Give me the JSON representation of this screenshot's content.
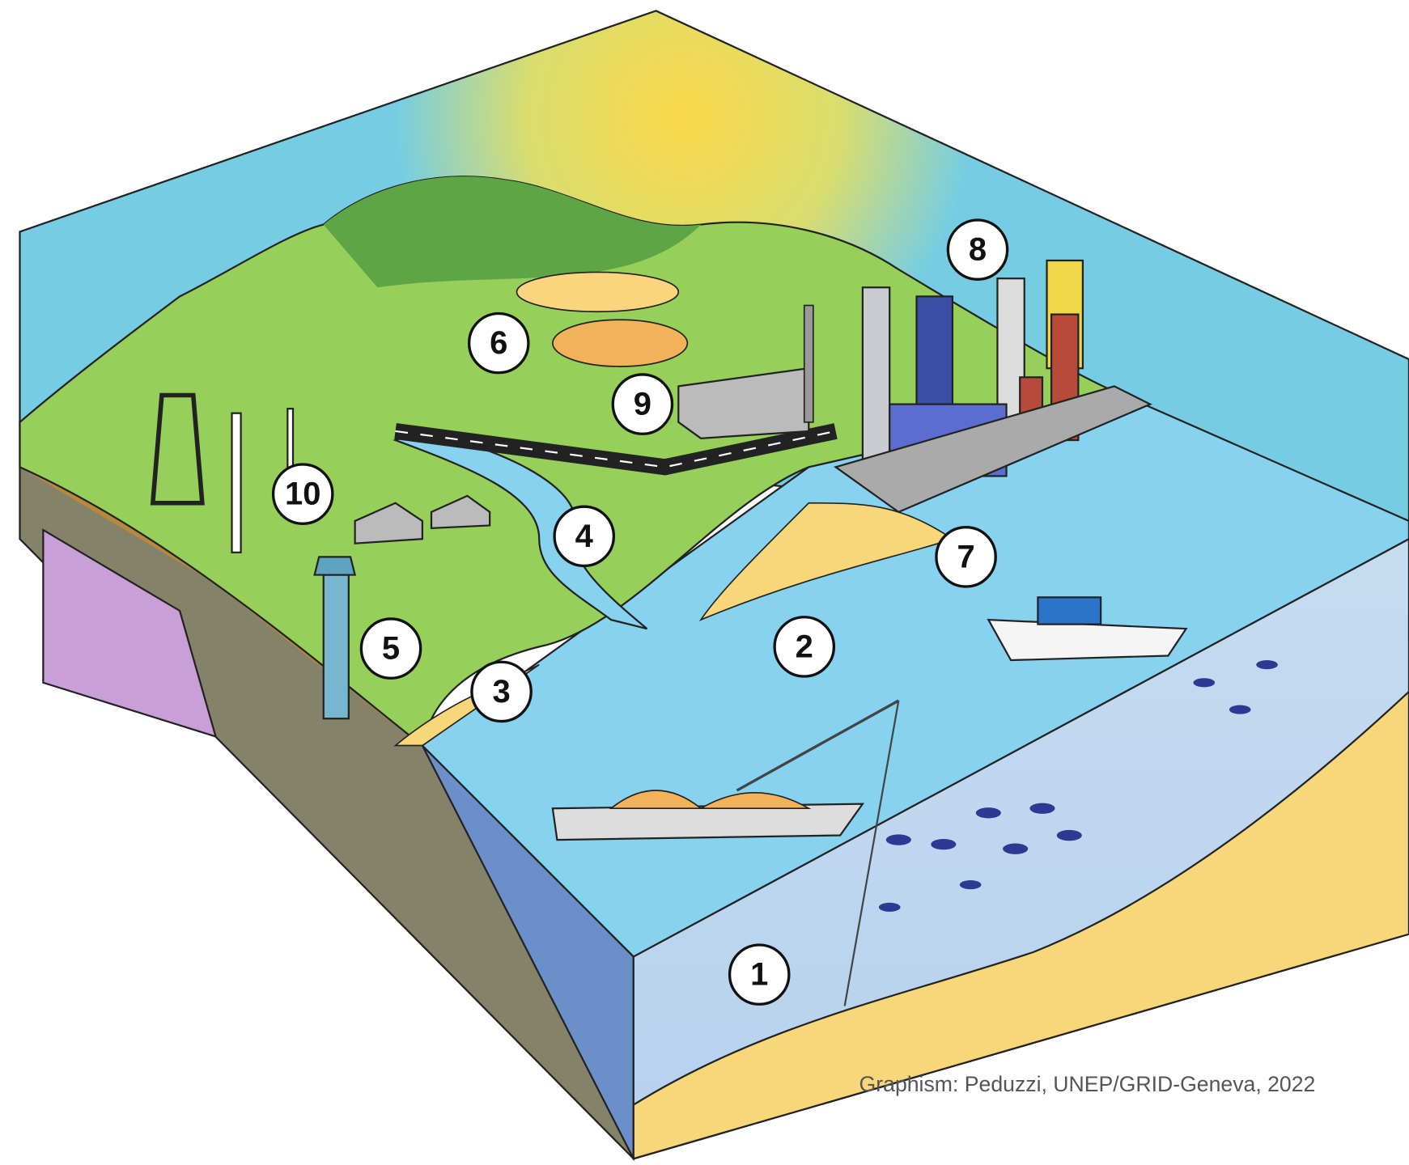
{
  "labels": [
    {
      "text": "1"
    },
    {
      "text": "2"
    },
    {
      "text": "3"
    },
    {
      "text": "4"
    },
    {
      "text": "5"
    },
    {
      "text": "6"
    },
    {
      "text": "7"
    },
    {
      "text": "8"
    },
    {
      "text": "9"
    },
    {
      "text": "10"
    }
  ],
  "credit": "Graphism: Peduzzi, UNEP/GRID-Geneva, 2022"
}
